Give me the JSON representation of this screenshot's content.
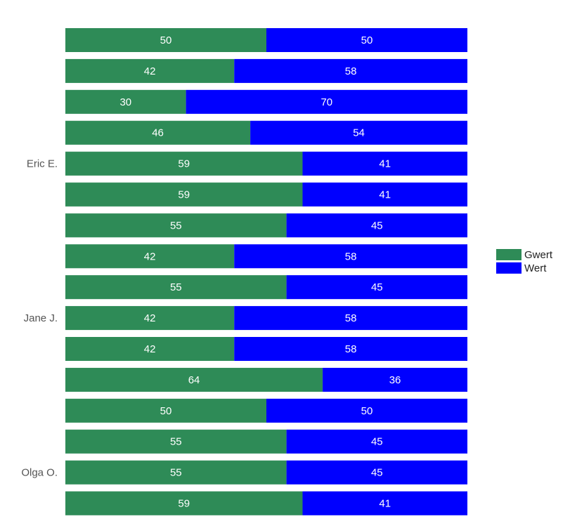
{
  "chart_data": {
    "type": "bar",
    "orientation": "horizontal",
    "stacked": true,
    "normalized": true,
    "categories": [
      "",
      "",
      "",
      "",
      "Eric E.",
      "",
      "",
      "",
      "",
      "Jane J.",
      "",
      "",
      "",
      "",
      "Olga O.",
      ""
    ],
    "series": [
      {
        "name": "Gwert",
        "color": "#2e8b57",
        "values": [
          50,
          42,
          30,
          46,
          59,
          59,
          55,
          42,
          55,
          42,
          42,
          64,
          50,
          55,
          55,
          59
        ]
      },
      {
        "name": "Wert",
        "color": "#0000ff",
        "values": [
          50,
          58,
          70,
          54,
          41,
          41,
          45,
          58,
          45,
          58,
          58,
          36,
          50,
          45,
          45,
          41
        ]
      }
    ],
    "xlim": [
      0,
      100
    ],
    "grid": false,
    "legend_position": "right"
  }
}
